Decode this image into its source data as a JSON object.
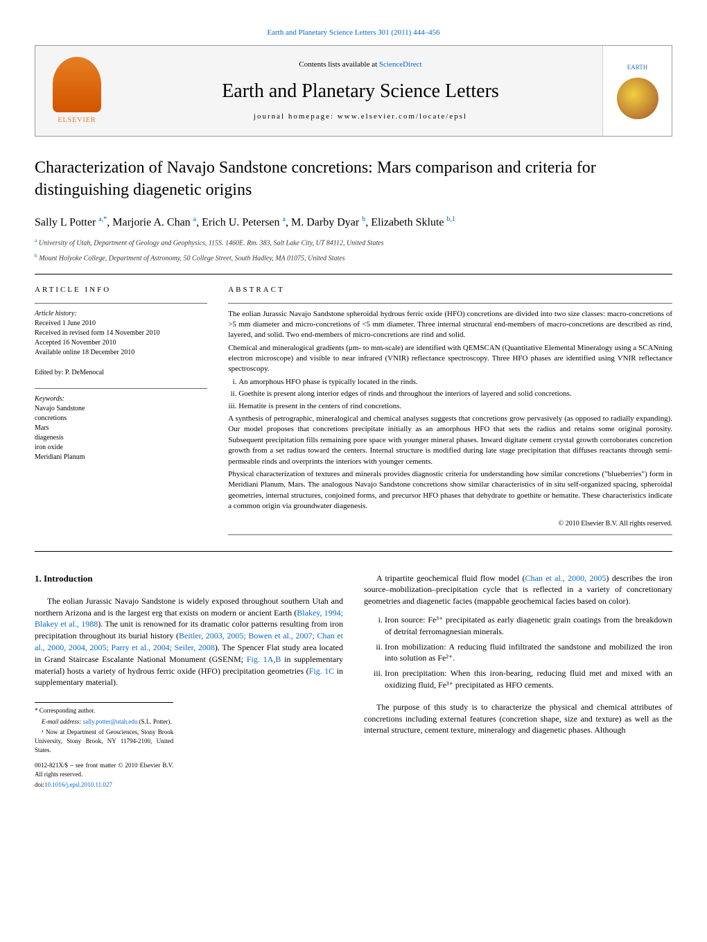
{
  "top_reference": "Earth and Planetary Science Letters 301 (2011) 444–456",
  "banner": {
    "publisher_label": "ELSEVIER",
    "contents_prefix": "Contents lists available at ",
    "contents_link": "ScienceDirect",
    "journal_name": "Earth and Planetary Science Letters",
    "homepage_prefix": "journal homepage: ",
    "homepage_url": "www.elsevier.com/locate/epsl",
    "cover_label": "EARTH"
  },
  "title": "Characterization of Navajo Sandstone concretions: Mars comparison and criteria for distinguishing diagenetic origins",
  "authors_html": "Sally L Potter <sup>a,*</sup>, Marjorie A. Chan <sup>a</sup>, Erich U. Petersen <sup>a</sup>, M. Darby Dyar <sup>b</sup>, Elizabeth Sklute <sup>b,1</sup>",
  "affiliations": [
    "a University of Utah, Department of Geology and Geophysics, 115S. 1460E. Rm. 383, Salt Lake City, UT 84112, United States",
    "b Mount Holyoke College, Department of Astronomy, 50 College Street, South Hadley, MA 01075, United States"
  ],
  "article_info": {
    "heading": "ARTICLE INFO",
    "history_label": "Article history:",
    "history": [
      "Received 1 June 2010",
      "Received in revised form 14 November 2010",
      "Accepted 16 November 2010",
      "Available online 18 December 2010"
    ],
    "editor": "Edited by: P. DeMenocal",
    "keywords_label": "Keywords:",
    "keywords": [
      "Navajo Sandstone",
      "concretions",
      "Mars",
      "diagenesis",
      "iron oxide",
      "Meridiani Planum"
    ]
  },
  "abstract": {
    "heading": "ABSTRACT",
    "p1": "The eolian Jurassic Navajo Sandstone spheroidal hydrous ferric oxide (HFO) concretions are divided into two size classes: macro-concretions of >5 mm diameter and micro-concretions of <5 mm diameter. Three internal structural end-members of macro-concretions are described as rind, layered, and solid. Two end-members of micro-concretions are rind and solid.",
    "p2": "Chemical and mineralogical gradients (μm- to mm-scale) are identified with QEMSCAN (Quantitative Elemental Mineralogy using a SCANning electron microscope) and visible to near infrared (VNIR) reflectance spectroscopy. Three HFO phases are identified using VNIR reflectance spectroscopy.",
    "list": [
      "An amorphous HFO phase is typically located in the rinds.",
      "Goethite is present along interior edges of rinds and throughout the interiors of layered and solid concretions.",
      "Hematite is present in the centers of rind concretions."
    ],
    "p3": "A synthesis of petrographic, mineralogical and chemical analyses suggests that concretions grow pervasively (as opposed to radially expanding). Our model proposes that concretions precipitate initially as an amorphous HFO that sets the radius and retains some original porosity. Subsequent precipitation fills remaining pore space with younger mineral phases. Inward digitate cement crystal growth corroborates concretion growth from a set radius toward the centers. Internal structure is modified during late stage precipitation that diffuses reactants through semi-permeable rinds and overprints the interiors with younger cements.",
    "p4": "Physical characterization of textures and minerals provides diagnostic criteria for understanding how similar concretions (\"blueberries\") form in Meridiani Planum, Mars. The analogous Navajo Sandstone concretions show similar characteristics of in situ self-organized spacing, spheroidal geometries, internal structures, conjoined forms, and precursor HFO phases that dehydrate to goethite or hematite. These characteristics indicate a common origin via groundwater diagenesis.",
    "copyright": "© 2010 Elsevier B.V. All rights reserved."
  },
  "intro": {
    "heading": "1. Introduction",
    "p1_pre": "The eolian Jurassic Navajo Sandstone is widely exposed throughout southern Utah and northern Arizona and is the largest erg that exists on modern or ancient Earth (",
    "p1_ref1": "Blakey, 1994; Blakey et al., 1988",
    "p1_mid1": "). The unit is renowned for its dramatic color patterns resulting from iron precipitation throughout its burial history (",
    "p1_ref2": "Beitler, 2003, 2005; Bowen et al., 2007; Chan et al., 2000, 2004, 2005; Parry et al., 2004; Seiler, 2008",
    "p1_mid2": "). The Spencer Flat study area located in Grand Staircase Escalante National Monument (GSENM; ",
    "p1_ref3": "Fig. 1A,B",
    "p1_mid3": " in supplementary material) hosts a variety of hydrous ferric oxide (HFO) precipitation geometries (",
    "p1_ref4": "Fig. 1C",
    "p1_end": " in supplementary material)."
  },
  "col2": {
    "p1_pre": "A tripartite geochemical fluid flow model (",
    "p1_ref": "Chan et al., 2000, 2005",
    "p1_post": ") describes the iron source–mobilization–precipitation cycle that is reflected in a variety of concretionary geometries and diagenetic facies (mappable geochemical facies based on color).",
    "list": [
      "Iron source: Fe³⁺ precipitated as early diagenetic grain coatings from the breakdown of detrital ferromagnesian minerals.",
      "Iron mobilization: A reducing fluid infiltrated the sandstone and mobilized the iron into solution as Fe²⁺.",
      "Iron precipitation: When this iron-bearing, reducing fluid met and mixed with an oxidizing fluid, Fe³⁺ precipitated as HFO cements."
    ],
    "p2": "The purpose of this study is to characterize the physical and chemical attributes of concretions including external features (concretion shape, size and texture) as well as the internal structure, cement texture, mineralogy and diagenetic phases. Although"
  },
  "footnotes": {
    "corr": "* Corresponding author.",
    "email_label": "E-mail address: ",
    "email": "sally.potter@utah.edu",
    "email_post": " (S.L. Potter).",
    "note1": "¹ Now at Department of Geosciences, Stony Brook University, Stony Brook, NY 11794-2100, United States.",
    "front_matter": "0012-821X/$ – see front matter © 2010 Elsevier B.V. All rights reserved.",
    "doi_label": "doi:",
    "doi": "10.1016/j.epsl.2010.11.027"
  }
}
